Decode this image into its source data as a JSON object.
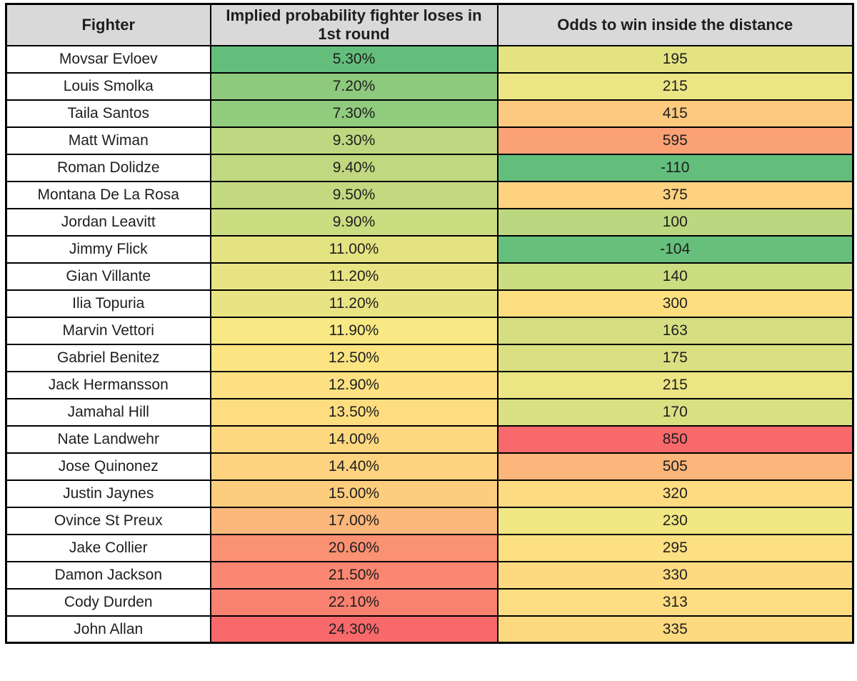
{
  "table": {
    "columns": [
      "Fighter",
      "Implied probability fighter loses in 1st round",
      "Odds to win inside the distance"
    ],
    "style": {
      "header_bg": "#D9D9D9",
      "row_bg": "#FFFFFF",
      "border_color": "#000000",
      "text_color": "#1E1E1E",
      "scale_low_color": "#63BE7B",
      "scale_mid_color": "#FFEB84",
      "scale_high_color": "#F8696B"
    },
    "rows": [
      {
        "fighter": "Movsar Evloev",
        "probability": "5.30%",
        "probability_color": "#63BE7B",
        "odds": "195",
        "odds_color": "#E3E382"
      },
      {
        "fighter": "Louis Smolka",
        "probability": "7.20%",
        "probability_color": "#8ECA7D",
        "odds": "215",
        "odds_color": "#EBE583"
      },
      {
        "fighter": "Taila Santos",
        "probability": "7.30%",
        "probability_color": "#90CB7E",
        "odds": "415",
        "odds_color": "#FDC97E"
      },
      {
        "fighter": "Matt Wiman",
        "probability": "9.30%",
        "probability_color": "#BDD880",
        "odds": "595",
        "odds_color": "#FBA176"
      },
      {
        "fighter": "Roman Dolidze",
        "probability": "9.40%",
        "probability_color": "#C0D980",
        "odds": "-110",
        "odds_color": "#63BE7B"
      },
      {
        "fighter": "Montana De La Rosa",
        "probability": "9.50%",
        "probability_color": "#C2D980",
        "odds": "375",
        "odds_color": "#FED27F"
      },
      {
        "fighter": "Jordan Leavitt",
        "probability": "9.90%",
        "probability_color": "#CBDC81",
        "odds": "100",
        "odds_color": "#BBD780"
      },
      {
        "fighter": "Jimmy Flick",
        "probability": "11.00%",
        "probability_color": "#E4E382",
        "odds": "-104",
        "odds_color": "#66BF7B"
      },
      {
        "fighter": "Gian Villante",
        "probability": "11.20%",
        "probability_color": "#E8E483",
        "odds": "140",
        "odds_color": "#CCDC81"
      },
      {
        "fighter": "Ilia Topuria",
        "probability": "11.20%",
        "probability_color": "#E8E483",
        "odds": "300",
        "odds_color": "#FEDF80"
      },
      {
        "fighter": "Marvin Vettori",
        "probability": "11.90%",
        "probability_color": "#F8E984",
        "odds": "163",
        "odds_color": "#D5DF82"
      },
      {
        "fighter": "Gabriel Benitez",
        "probability": "12.50%",
        "probability_color": "#FCE483",
        "odds": "175",
        "odds_color": "#DAE082"
      },
      {
        "fighter": "Jack Hermansson",
        "probability": "12.90%",
        "probability_color": "#FDE182",
        "odds": "215",
        "odds_color": "#EBE583"
      },
      {
        "fighter": "Jamahal Hill",
        "probability": "13.50%",
        "probability_color": "#FEDD81",
        "odds": "170",
        "odds_color": "#D8E082"
      },
      {
        "fighter": "Nate Landwehr",
        "probability": "14.00%",
        "probability_color": "#FED880",
        "odds": "850",
        "odds_color": "#F8696B"
      },
      {
        "fighter": "Jose Quinonez",
        "probability": "14.40%",
        "probability_color": "#FED37F",
        "odds": "505",
        "odds_color": "#FCB57A"
      },
      {
        "fighter": "Justin Jaynes",
        "probability": "15.00%",
        "probability_color": "#FDCD7E",
        "odds": "320",
        "odds_color": "#FDDB80"
      },
      {
        "fighter": "Ovince St Preux",
        "probability": "17.00%",
        "probability_color": "#FCB77A",
        "odds": "230",
        "odds_color": "#F1E783"
      },
      {
        "fighter": "Jake Collier",
        "probability": "20.60%",
        "probability_color": "#FA9173",
        "odds": "295",
        "odds_color": "#FDE081"
      },
      {
        "fighter": "Damon Jackson",
        "probability": "21.50%",
        "probability_color": "#FA8771",
        "odds": "330",
        "odds_color": "#FDDA80"
      },
      {
        "fighter": "Cody Durden",
        "probability": "22.10%",
        "probability_color": "#F98170",
        "odds": "313",
        "odds_color": "#FDDD81"
      },
      {
        "fighter": "John Allan",
        "probability": "24.30%",
        "probability_color": "#F8696B",
        "odds": "335",
        "odds_color": "#FDD980"
      }
    ]
  },
  "chart_data": {
    "type": "table",
    "title": "",
    "columns": [
      "Fighter",
      "Implied probability fighter loses in 1st round",
      "Odds to win inside the distance"
    ],
    "rows": [
      [
        "Movsar Evloev",
        5.3,
        195
      ],
      [
        "Louis Smolka",
        7.2,
        215
      ],
      [
        "Taila Santos",
        7.3,
        415
      ],
      [
        "Matt Wiman",
        9.3,
        595
      ],
      [
        "Roman Dolidze",
        9.4,
        -110
      ],
      [
        "Montana De La Rosa",
        9.5,
        375
      ],
      [
        "Jordan Leavitt",
        9.9,
        100
      ],
      [
        "Jimmy Flick",
        11.0,
        -104
      ],
      [
        "Gian Villante",
        11.2,
        140
      ],
      [
        "Ilia Topuria",
        11.2,
        300
      ],
      [
        "Marvin Vettori",
        11.9,
        163
      ],
      [
        "Gabriel Benitez",
        12.5,
        175
      ],
      [
        "Jack Hermansson",
        12.9,
        215
      ],
      [
        "Jamahal Hill",
        13.5,
        170
      ],
      [
        "Nate Landwehr",
        14.0,
        850
      ],
      [
        "Jose Quinonez",
        14.4,
        505
      ],
      [
        "Justin Jaynes",
        15.0,
        320
      ],
      [
        "Ovince St Preux",
        17.0,
        230
      ],
      [
        "Jake Collier",
        20.6,
        295
      ],
      [
        "Damon Jackson",
        21.5,
        330
      ],
      [
        "Cody Durden",
        22.1,
        313
      ],
      [
        "John Allan",
        24.3,
        335
      ]
    ],
    "conditional_format": "per-column 3-color scale: green (low) to yellow (mid) to red (high)",
    "scale_colors": {
      "low": "#63BE7B",
      "mid": "#FFEB84",
      "high": "#F8696B"
    }
  }
}
